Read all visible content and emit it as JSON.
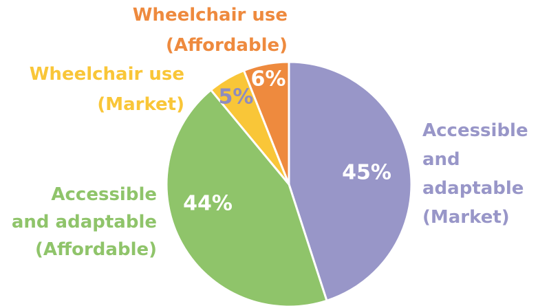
{
  "chart_data": {
    "type": "pie",
    "categories": [
      "Accessible\nand\nadaptable\n(Market)",
      "Accessible\nand adaptable\n(Affordable)",
      "Wheelchair use\n(Market)",
      "Wheelchair use\n(Affordable)"
    ],
    "values": [
      45,
      44,
      5,
      6
    ],
    "value_labels": [
      "45%",
      "44%",
      "5%",
      "6%"
    ],
    "colors": [
      "#9896c8",
      "#8fc46a",
      "#f9c638",
      "#ee8a3e"
    ],
    "value_label_colors": [
      "#ffffff",
      "#ffffff",
      "#8e8cbf",
      "#ffffff"
    ]
  }
}
